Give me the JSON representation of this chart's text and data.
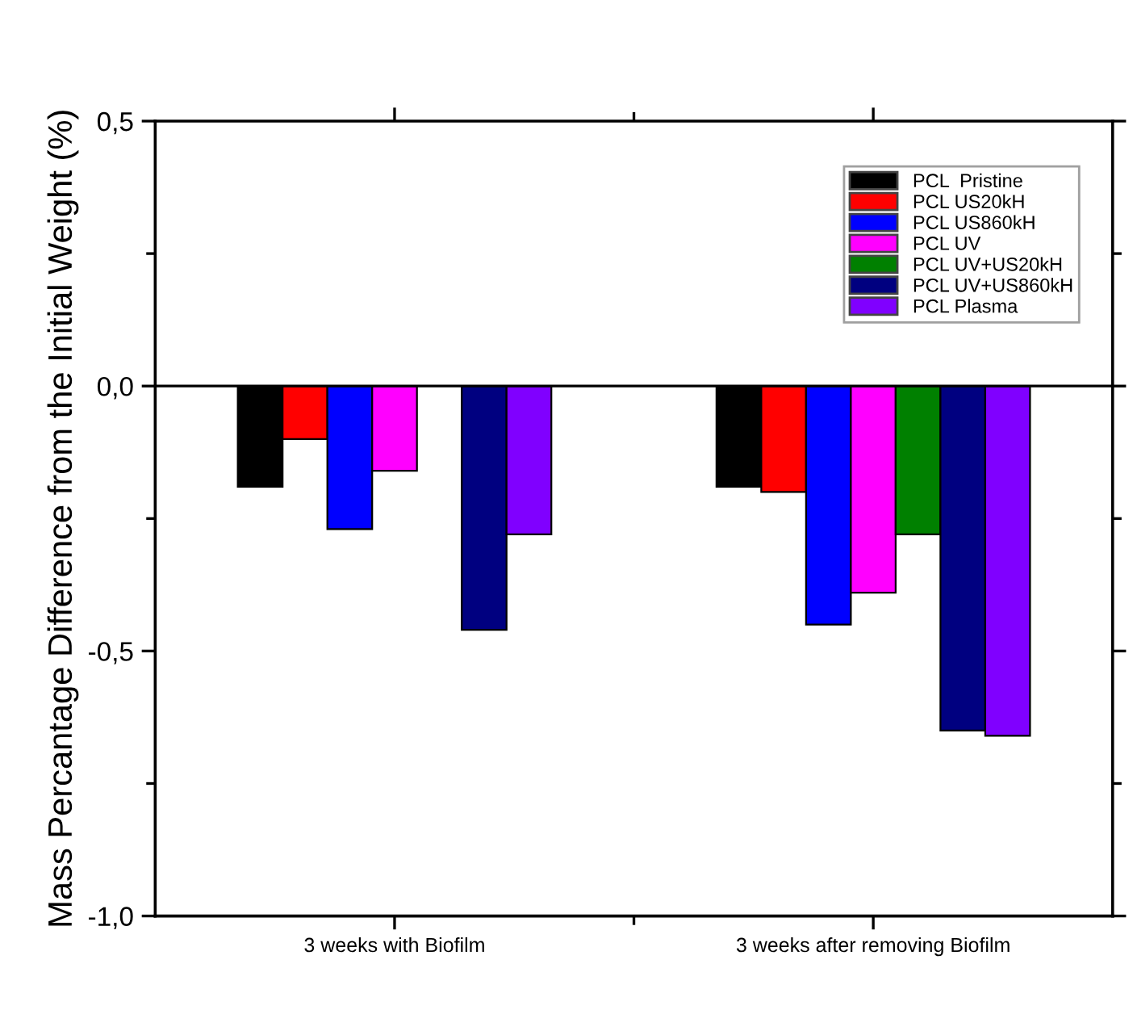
{
  "chart_data": {
    "type": "bar",
    "ylabel": "Mass Percantage Difference from the Initial Weight (%)",
    "categories": [
      "3 weeks with Biofilm",
      "3 weeks after removing Biofilm"
    ],
    "series": [
      {
        "name": "PCL  Pristine",
        "color": "#000000",
        "values": [
          -0.19,
          -0.19
        ]
      },
      {
        "name": "PCL US20kH",
        "color": "#ff0000",
        "values": [
          -0.1,
          -0.2
        ]
      },
      {
        "name": "PCL US860kH",
        "color": "#0000ff",
        "values": [
          -0.27,
          -0.45
        ]
      },
      {
        "name": "PCL UV",
        "color": "#ff00ff",
        "values": [
          -0.16,
          -0.39
        ]
      },
      {
        "name": "PCL UV+US20kH",
        "color": "#008000",
        "values": [
          null,
          -0.28
        ]
      },
      {
        "name": "PCL UV+US860kH",
        "color": "#000080",
        "values": [
          -0.46,
          -0.65
        ]
      },
      {
        "name": "PCL Plasma",
        "color": "#8000ff",
        "values": [
          -0.28,
          -0.66
        ]
      }
    ],
    "ylim": [
      -1.0,
      0.5
    ],
    "yticks": [
      {
        "value": -1.0,
        "label": "-1,0"
      },
      {
        "value": -0.5,
        "label": "-0,5"
      },
      {
        "value": 0.0,
        "label": "0,0"
      },
      {
        "value": 0.5,
        "label": "0,5"
      }
    ],
    "ref_lines": [
      {
        "axis": "y",
        "value": 0.0,
        "color": "#000000",
        "line_style": "solid"
      }
    ],
    "legend": "top right",
    "grid": false
  }
}
